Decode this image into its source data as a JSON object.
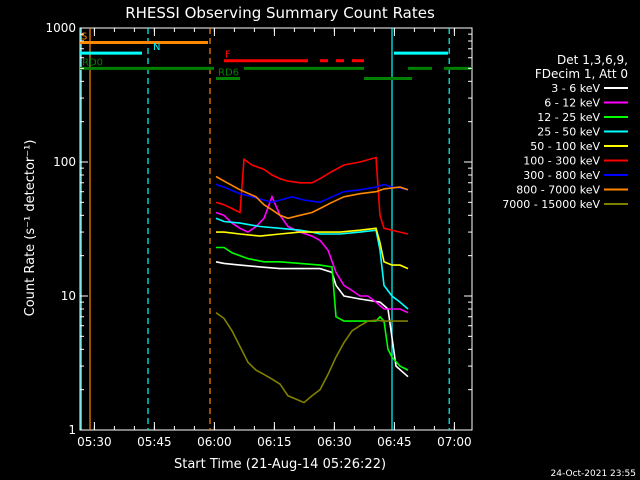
{
  "chart_data": {
    "type": "line",
    "title": "RHESSI Observing Summary Count Rates",
    "xlabel": "Start Time (21-Aug-14 05:26:22)",
    "ylabel": "Count Rate (s⁻¹ detector⁻¹)",
    "ylog": true,
    "ylim": [
      1,
      1000
    ],
    "xlim_minutes": [
      0,
      98
    ],
    "xtick_labels": [
      {
        "label": "05:30",
        "t": 3.6
      },
      {
        "label": "05:45",
        "t": 18.6
      },
      {
        "label": "06:00",
        "t": 33.6
      },
      {
        "label": "06:15",
        "t": 48.6
      },
      {
        "label": "06:30",
        "t": 63.6
      },
      {
        "label": "06:45",
        "t": 78.6
      },
      {
        "label": "07:00",
        "t": 93.6
      }
    ],
    "ytick_labels": [
      {
        "label": "1",
        "v": 1
      },
      {
        "label": "10",
        "v": 10
      },
      {
        "label": "100",
        "v": 100
      },
      {
        "label": "1000",
        "v": 1000
      }
    ],
    "legend_header": [
      "Det 1,3,6,9,",
      "FDecim 1, Att 0"
    ],
    "legend_position": "right",
    "series": [
      {
        "name": "3 - 6 keV",
        "color": "#ffffff",
        "points": [
          [
            34,
            18
          ],
          [
            36,
            17.5
          ],
          [
            40,
            17
          ],
          [
            45,
            16.5
          ],
          [
            50,
            16
          ],
          [
            55,
            16
          ],
          [
            60,
            16
          ],
          [
            63,
            15
          ],
          [
            64,
            12
          ],
          [
            66,
            10
          ],
          [
            70,
            9.5
          ],
          [
            75,
            9
          ],
          [
            77,
            8
          ],
          [
            79,
            3
          ],
          [
            82,
            2.5
          ]
        ]
      },
      {
        "name": "6 - 12 keV",
        "color": "#ff00ff",
        "points": [
          [
            34,
            42
          ],
          [
            36,
            40
          ],
          [
            38,
            35
          ],
          [
            40,
            32
          ],
          [
            42,
            30
          ],
          [
            44,
            33
          ],
          [
            46,
            38
          ],
          [
            48,
            55
          ],
          [
            50,
            40
          ],
          [
            52,
            33
          ],
          [
            55,
            30
          ],
          [
            58,
            28
          ],
          [
            60,
            26
          ],
          [
            62,
            22
          ],
          [
            64,
            15
          ],
          [
            66,
            12
          ],
          [
            68,
            11
          ],
          [
            70,
            10
          ],
          [
            72,
            10
          ],
          [
            74,
            9
          ],
          [
            76,
            8
          ],
          [
            78,
            8
          ],
          [
            80,
            8
          ],
          [
            82,
            7.5
          ]
        ]
      },
      {
        "name": "12 - 25 keV",
        "color": "#00ff00",
        "points": [
          [
            34,
            23
          ],
          [
            36,
            23
          ],
          [
            38,
            21
          ],
          [
            40,
            20
          ],
          [
            42,
            19
          ],
          [
            44,
            18.5
          ],
          [
            46,
            18
          ],
          [
            48,
            18
          ],
          [
            50,
            18
          ],
          [
            55,
            17.5
          ],
          [
            60,
            17
          ],
          [
            63,
            16.5
          ],
          [
            64,
            7
          ],
          [
            66,
            6.5
          ],
          [
            70,
            6.5
          ],
          [
            74,
            6.5
          ],
          [
            75,
            7
          ],
          [
            76,
            6.5
          ],
          [
            77,
            4
          ],
          [
            78,
            3.5
          ],
          [
            80,
            3
          ],
          [
            82,
            2.8
          ]
        ]
      },
      {
        "name": "25 - 50 keV",
        "color": "#00ffff",
        "points": [
          [
            34,
            38
          ],
          [
            36,
            36
          ],
          [
            40,
            35
          ],
          [
            45,
            33
          ],
          [
            50,
            32
          ],
          [
            55,
            31
          ],
          [
            58,
            30
          ],
          [
            60,
            29
          ],
          [
            65,
            29
          ],
          [
            70,
            30
          ],
          [
            74,
            31
          ],
          [
            75,
            22
          ],
          [
            76,
            12
          ],
          [
            78,
            10
          ],
          [
            80,
            9
          ],
          [
            82,
            8
          ]
        ]
      },
      {
        "name": "50 - 100 keV",
        "color": "#ffff00",
        "points": [
          [
            34,
            30
          ],
          [
            36,
            30
          ],
          [
            40,
            29
          ],
          [
            45,
            28
          ],
          [
            50,
            29
          ],
          [
            55,
            30
          ],
          [
            60,
            30
          ],
          [
            65,
            30
          ],
          [
            70,
            31
          ],
          [
            74,
            32
          ],
          [
            75,
            25
          ],
          [
            76,
            18
          ],
          [
            78,
            17
          ],
          [
            80,
            17
          ],
          [
            82,
            16
          ]
        ]
      },
      {
        "name": "100 - 300 keV",
        "color": "#ff0000",
        "points": [
          [
            34,
            50
          ],
          [
            36,
            48
          ],
          [
            38,
            45
          ],
          [
            40,
            42
          ],
          [
            41,
            105
          ],
          [
            43,
            95
          ],
          [
            46,
            88
          ],
          [
            48,
            80
          ],
          [
            50,
            75
          ],
          [
            52,
            72
          ],
          [
            55,
            70
          ],
          [
            58,
            70
          ],
          [
            60,
            75
          ],
          [
            63,
            85
          ],
          [
            66,
            95
          ],
          [
            70,
            100
          ],
          [
            74,
            108
          ],
          [
            75,
            40
          ],
          [
            76,
            32
          ],
          [
            78,
            31
          ],
          [
            80,
            30
          ],
          [
            82,
            29
          ]
        ]
      },
      {
        "name": "300 - 800 keV",
        "color": "#0000ff",
        "points": [
          [
            34,
            68
          ],
          [
            36,
            65
          ],
          [
            40,
            58
          ],
          [
            43,
            55
          ],
          [
            46,
            52
          ],
          [
            48,
            50
          ],
          [
            50,
            52
          ],
          [
            53,
            55
          ],
          [
            56,
            52
          ],
          [
            60,
            50
          ],
          [
            63,
            55
          ],
          [
            66,
            60
          ],
          [
            70,
            62
          ],
          [
            74,
            65
          ],
          [
            76,
            68
          ],
          [
            78,
            65
          ],
          [
            80,
            64
          ],
          [
            82,
            62
          ]
        ]
      },
      {
        "name": "800 - 7000 keV",
        "color": "#ff8800",
        "points": [
          [
            34,
            78
          ],
          [
            36,
            72
          ],
          [
            40,
            62
          ],
          [
            44,
            55
          ],
          [
            46,
            48
          ],
          [
            48,
            44
          ],
          [
            50,
            40
          ],
          [
            52,
            38
          ],
          [
            55,
            40
          ],
          [
            58,
            42
          ],
          [
            60,
            45
          ],
          [
            63,
            50
          ],
          [
            66,
            55
          ],
          [
            70,
            58
          ],
          [
            74,
            60
          ],
          [
            76,
            63
          ],
          [
            80,
            65
          ],
          [
            82,
            62
          ]
        ]
      },
      {
        "name": "7000 - 15000 keV",
        "color": "#808000",
        "points": [
          [
            34,
            7.5
          ],
          [
            36,
            6.8
          ],
          [
            38,
            5.5
          ],
          [
            40,
            4.2
          ],
          [
            42,
            3.2
          ],
          [
            44,
            2.8
          ],
          [
            46,
            2.6
          ],
          [
            48,
            2.4
          ],
          [
            50,
            2.2
          ],
          [
            52,
            1.8
          ],
          [
            54,
            1.7
          ],
          [
            56,
            1.6
          ],
          [
            58,
            1.8
          ],
          [
            60,
            2.0
          ],
          [
            62,
            2.6
          ],
          [
            64,
            3.5
          ],
          [
            66,
            4.5
          ],
          [
            68,
            5.5
          ],
          [
            70,
            6.0
          ],
          [
            72,
            6.5
          ],
          [
            74,
            6.6
          ],
          [
            76,
            6.5
          ],
          [
            78,
            6.5
          ],
          [
            80,
            6.5
          ],
          [
            82,
            6.5
          ]
        ]
      }
    ],
    "flag_bars": [
      {
        "label": "S",
        "color": "#ff8800",
        "v": 780,
        "segments": [
          [
            0,
            32
          ]
        ]
      },
      {
        "label": "N",
        "color": "#00ffff",
        "v": 650,
        "segments": [
          [
            0,
            15.5
          ],
          [
            78.5,
            92
          ]
        ]
      },
      {
        "label": "F",
        "color": "#ff0000",
        "v": 570,
        "segments": [
          [
            36,
            57
          ],
          [
            60,
            62
          ],
          [
            64,
            66
          ],
          [
            68,
            71
          ]
        ]
      },
      {
        "label": "RD0",
        "color": "#008000",
        "v": 500,
        "segments": [
          [
            0,
            33.5
          ],
          [
            41,
            71
          ],
          [
            82,
            88
          ],
          [
            91,
            98
          ]
        ]
      },
      {
        "label": "RD6",
        "color": "#008000",
        "v": 420,
        "segments": [
          [
            34,
            40
          ],
          [
            71,
            83
          ]
        ]
      }
    ],
    "vlines": [
      {
        "color": "#ff8800",
        "style": "solid",
        "t": 2.5
      },
      {
        "color": "#00ffff",
        "style": "solid",
        "t": 0.3
      },
      {
        "color": "#00ffff",
        "style": "dashed",
        "t": 17
      },
      {
        "color": "#ff8800",
        "style": "dashed",
        "t": 32.5
      },
      {
        "color": "#00ffff",
        "style": "solid",
        "t": 78
      },
      {
        "color": "#00ffff",
        "style": "dashed",
        "t": 92.3
      }
    ]
  },
  "footer": {
    "timestamp": "24-Oct-2021 23:55"
  }
}
